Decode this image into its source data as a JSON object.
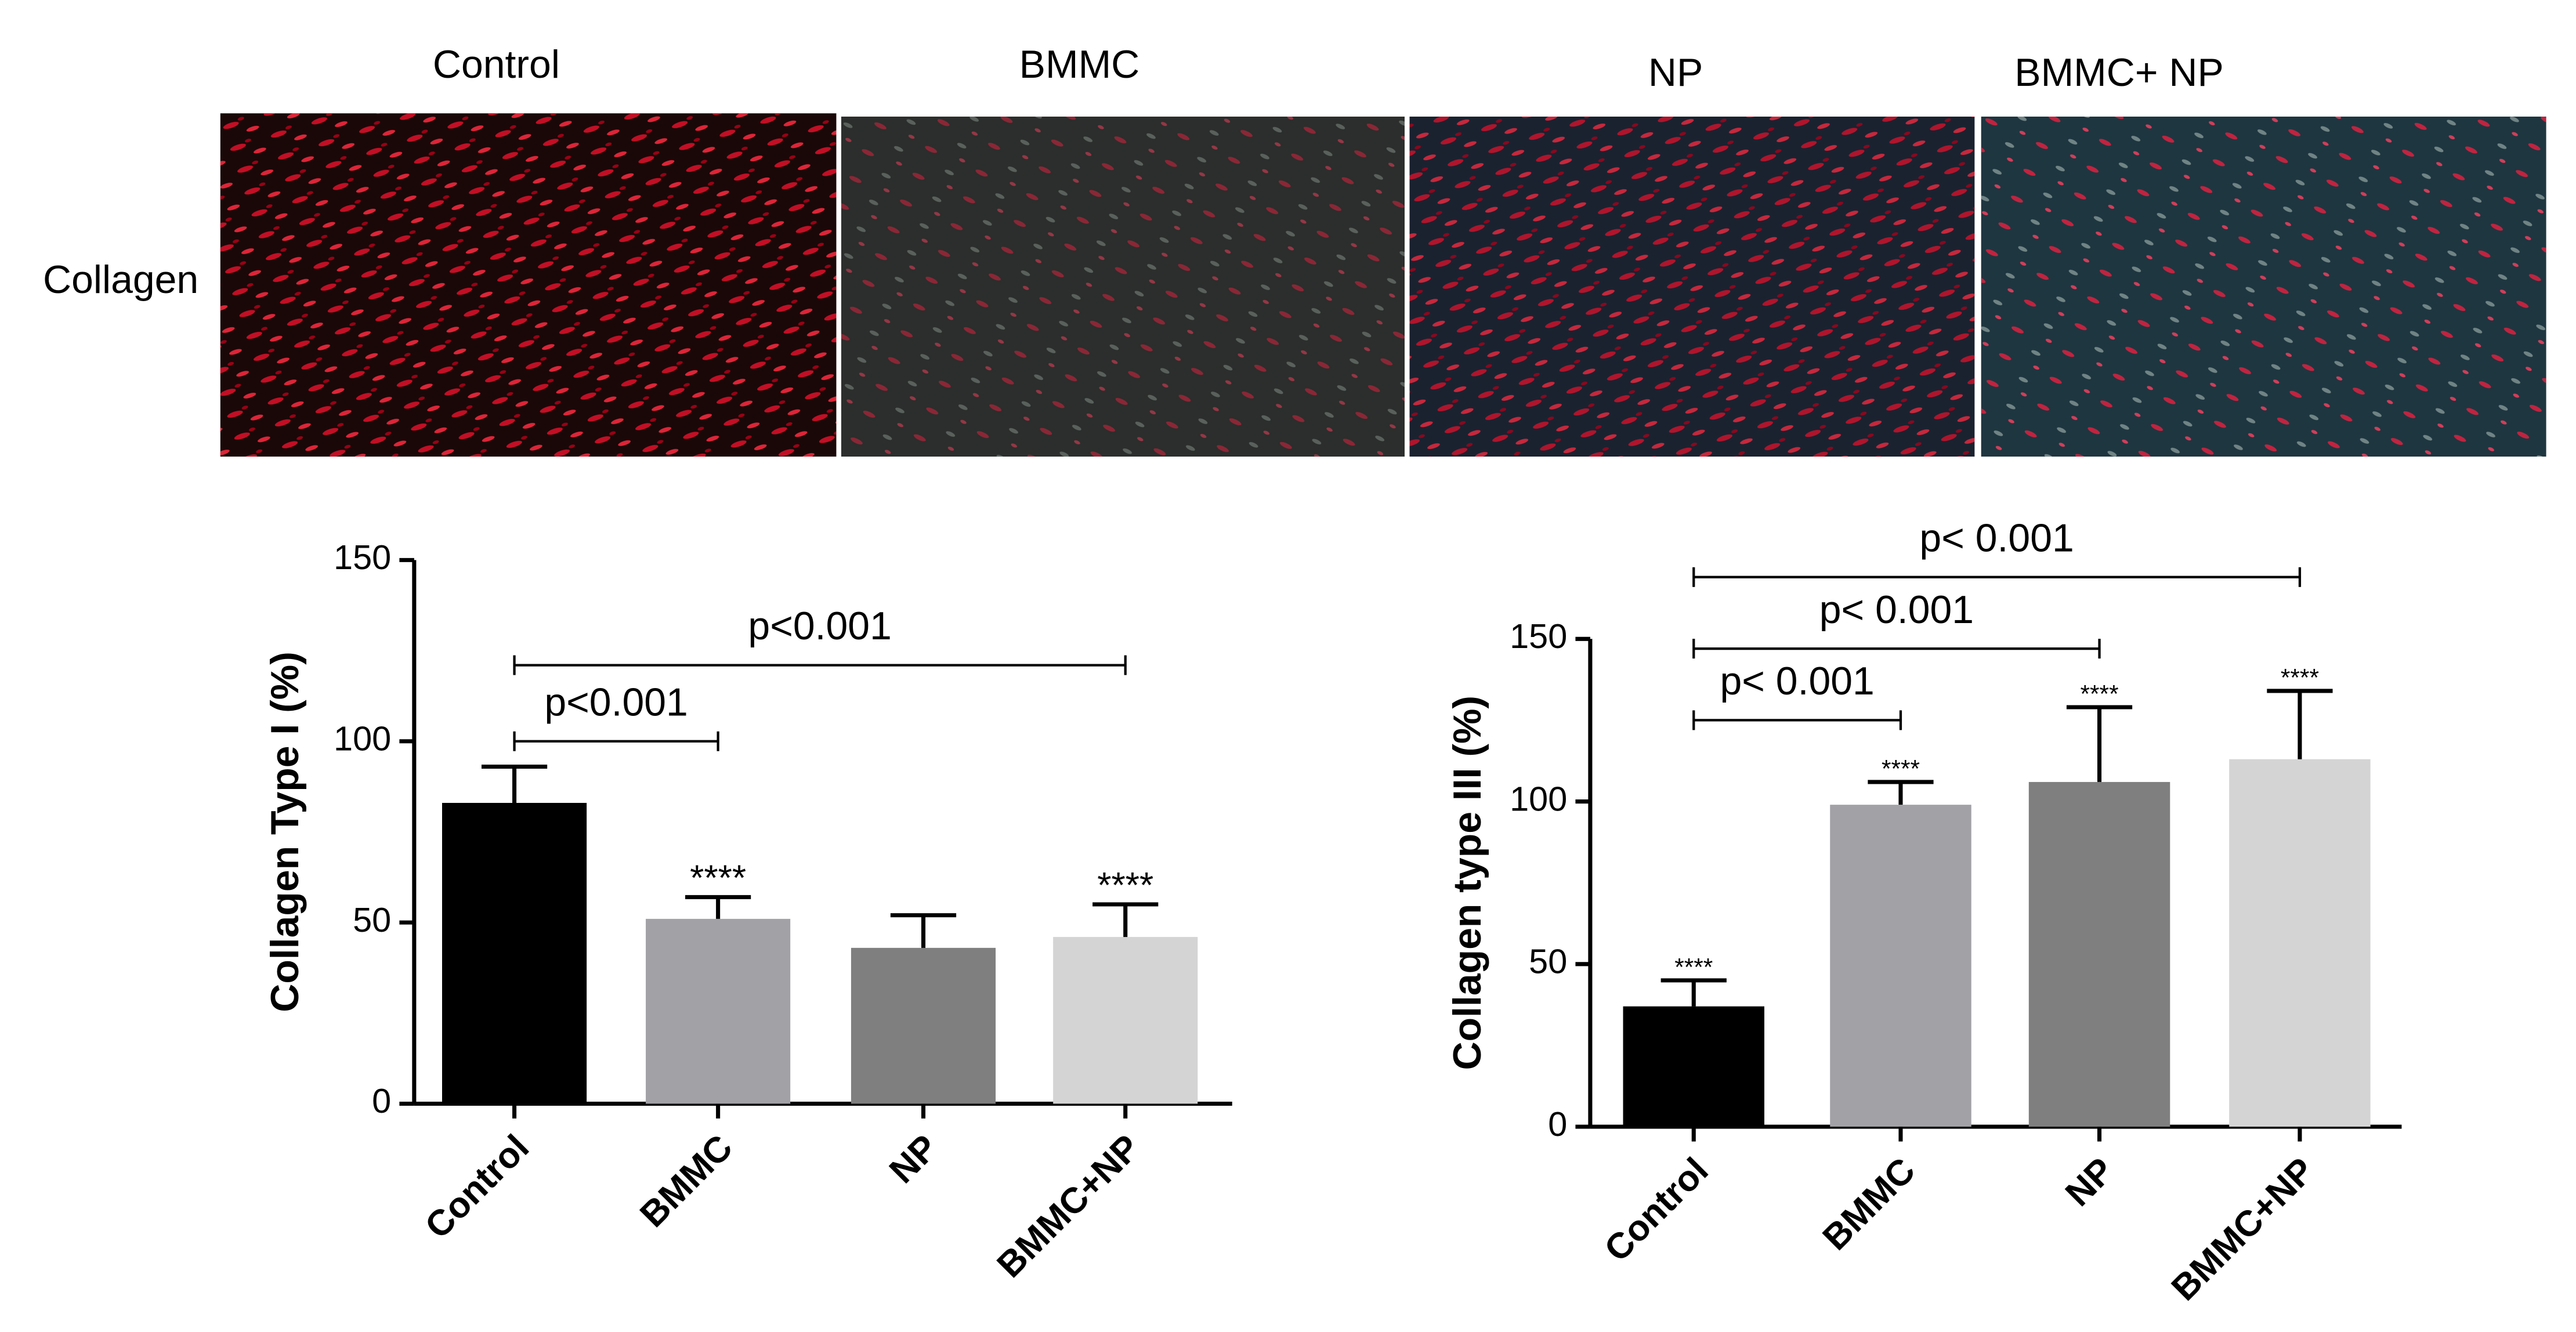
{
  "figure": {
    "panel_labels": [
      "Control",
      "BMMC",
      "NP",
      "BMMC+ NP"
    ],
    "row_label": "Collagen"
  },
  "chart_data": [
    {
      "type": "bar",
      "y_label": "Collagen Type I (%)",
      "categories": [
        "Control",
        "BMMC",
        "NP",
        "BMMC+NP"
      ],
      "values": [
        83,
        51,
        43,
        46
      ],
      "errors": [
        10,
        6,
        9,
        9
      ],
      "colors": [
        "#000000",
        "#a1a1a6",
        "#7f7f7f",
        "#d4d4d4"
      ],
      "significance": [
        null,
        "****",
        null,
        "****"
      ],
      "brackets": [
        {
          "label": "p<0.001",
          "from": 0,
          "to": 1,
          "y": 100
        },
        {
          "label": "p<0.001",
          "from": 0,
          "to": 3,
          "y": 121
        }
      ],
      "ylim": [
        0,
        150
      ],
      "yticks": [
        0,
        50,
        100,
        150
      ]
    },
    {
      "type": "bar",
      "y_label": "Collagen type III (%)",
      "categories": [
        "Control",
        "BMMC",
        "NP",
        "BMMC+NP"
      ],
      "values": [
        37,
        99,
        106,
        113
      ],
      "errors": [
        8,
        7,
        23,
        21
      ],
      "colors": [
        "#000000",
        "#a1a1a6",
        "#7f7f7f",
        "#d4d4d4"
      ],
      "significance": [
        "****",
        "****",
        "****",
        "****"
      ],
      "brackets": [
        {
          "label": "p< 0.001",
          "from": 0,
          "to": 1,
          "y": 125
        },
        {
          "label": "p< 0.001",
          "from": 0,
          "to": 2,
          "y": 147
        },
        {
          "label": "p< 0.001",
          "from": 0,
          "to": 3,
          "y": 169
        }
      ],
      "ylim": [
        0,
        150
      ],
      "yticks": [
        0,
        50,
        100,
        150
      ]
    }
  ]
}
